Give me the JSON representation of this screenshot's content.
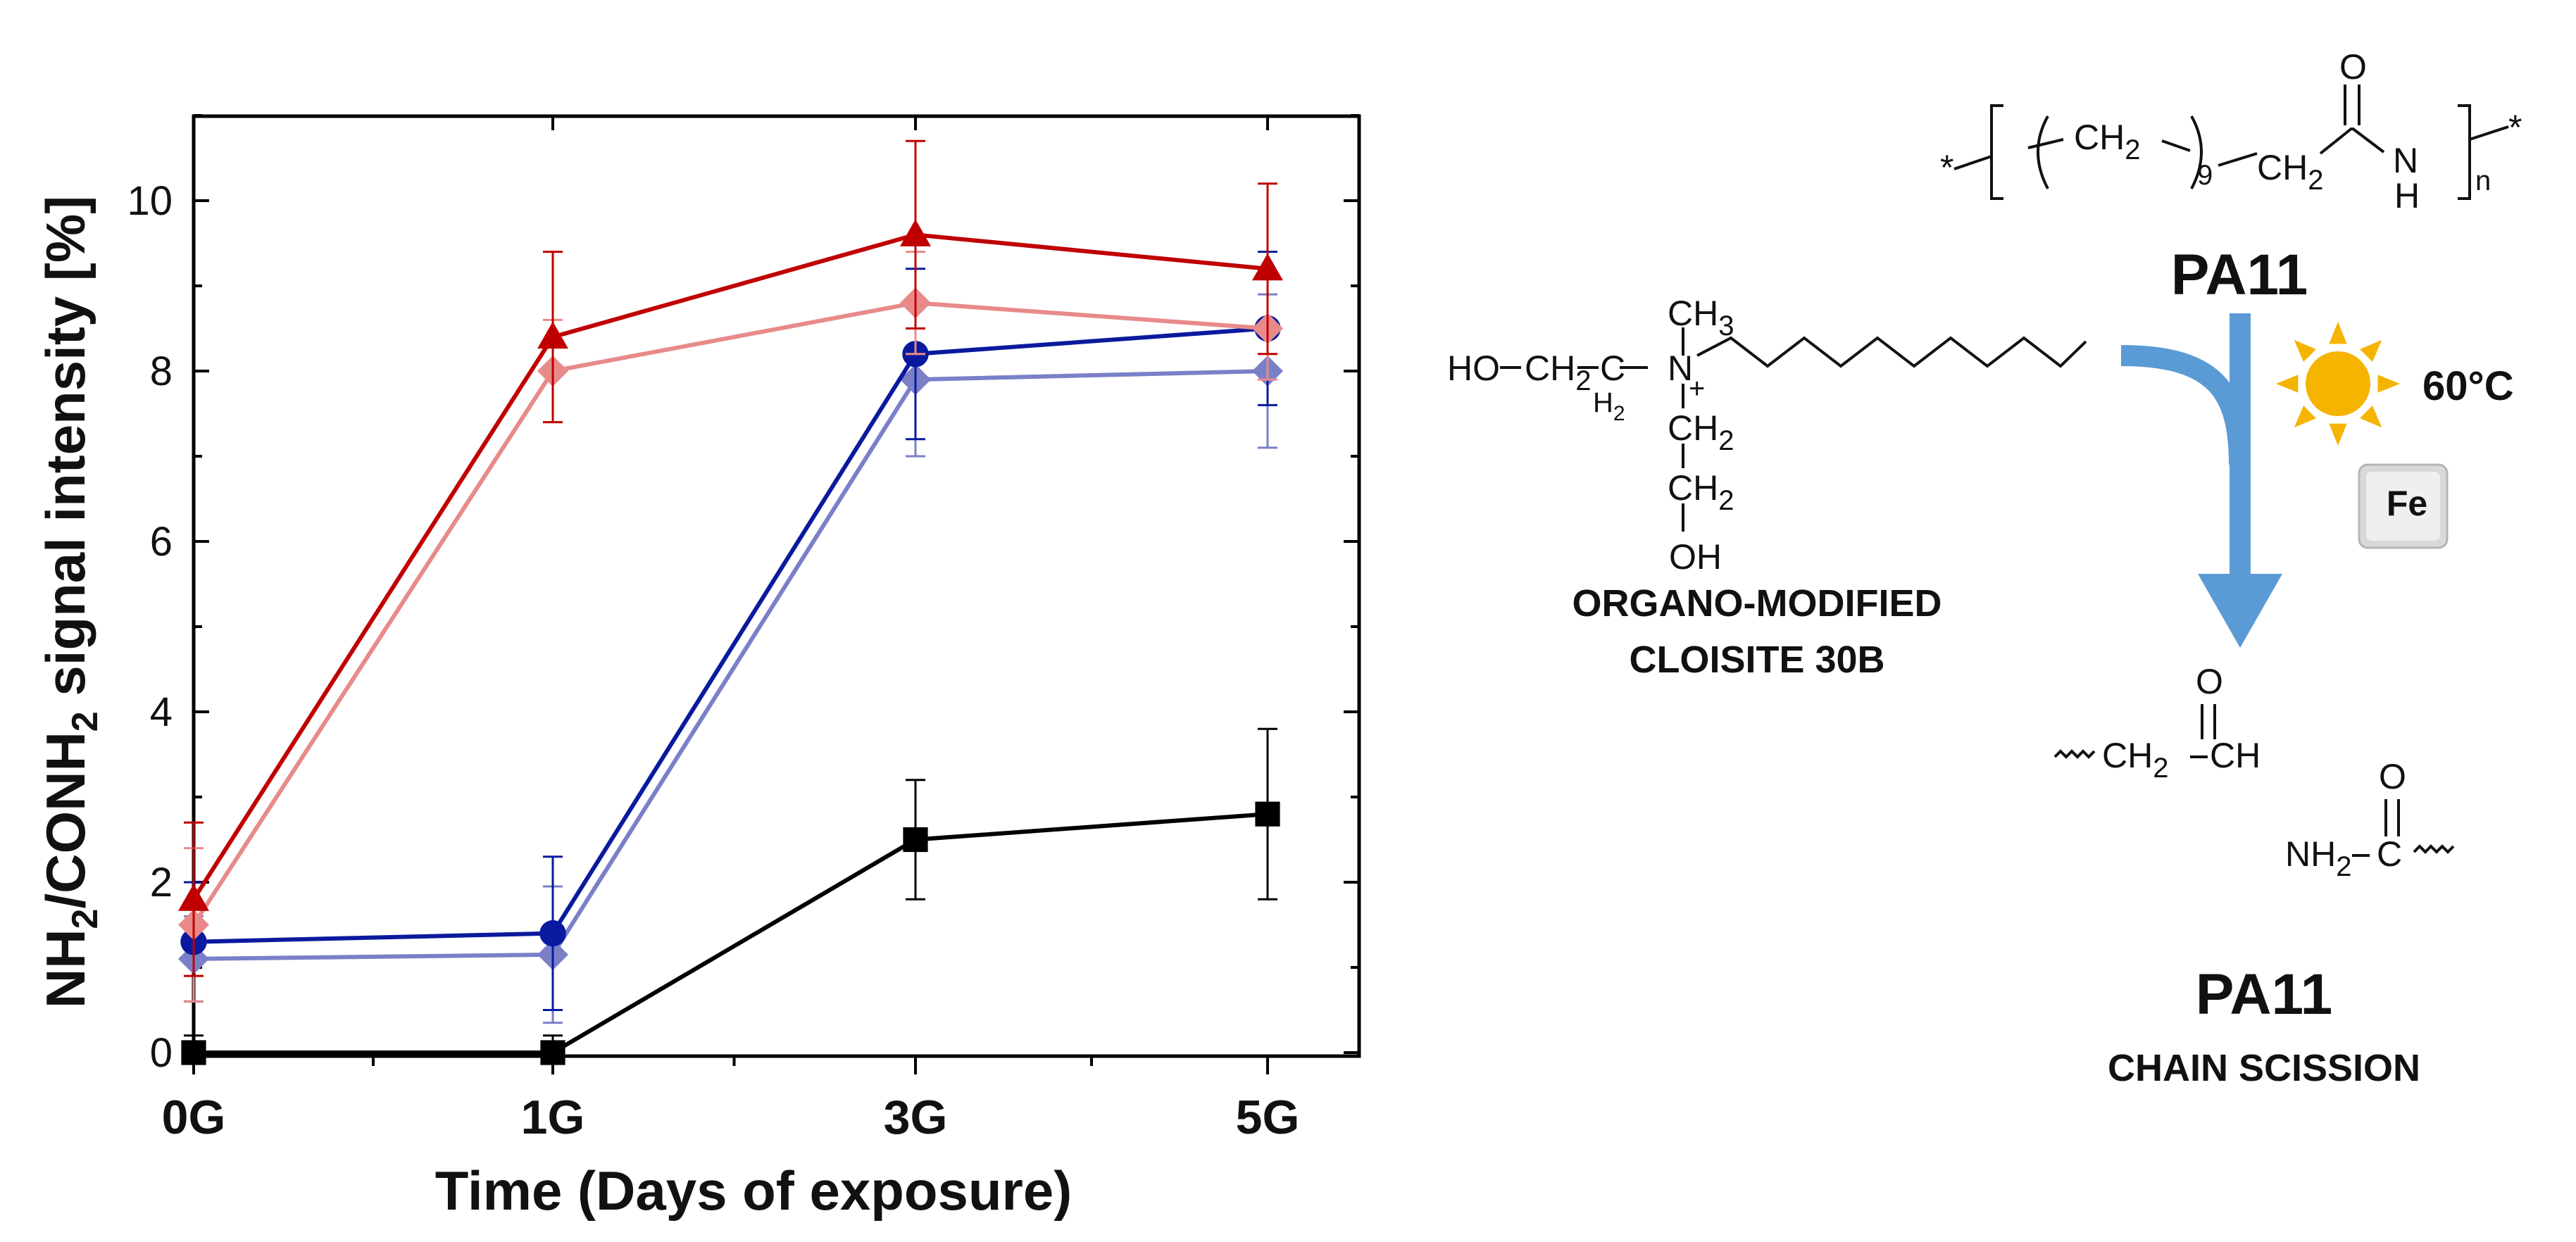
{
  "chart_data": {
    "type": "line",
    "xlabel": "Time (Days of exposure)",
    "ylabel_parts": [
      "NH",
      "2",
      "/CONH",
      "2",
      " signal intensity [%]"
    ],
    "categories": [
      "0G",
      "1G",
      "3G",
      "5G"
    ],
    "yticks": [
      "0",
      "2",
      "4",
      "6",
      "8",
      "10"
    ],
    "ylim": [
      0,
      11
    ],
    "series": [
      {
        "name": "series-dark-red",
        "color": "#c00000",
        "marker": "triangle",
        "values": [
          1.8,
          8.4,
          9.6,
          9.2
        ],
        "err": [
          0.9,
          1.0,
          1.1,
          1.0
        ]
      },
      {
        "name": "series-light-red",
        "color": "#e88a8a",
        "marker": "diamond",
        "values": [
          1.5,
          8.0,
          8.8,
          8.5
        ],
        "err": [
          0.9,
          0.6,
          0.6,
          0.6
        ]
      },
      {
        "name": "series-dark-blue",
        "color": "#0a1a9e",
        "marker": "circle",
        "values": [
          1.3,
          1.4,
          8.2,
          8.5
        ],
        "err": [
          0.7,
          0.9,
          1.0,
          0.9
        ]
      },
      {
        "name": "series-light-blue",
        "color": "#7a80c8",
        "marker": "diamond",
        "values": [
          1.1,
          1.15,
          7.9,
          8.0
        ],
        "err": [
          0.5,
          0.8,
          0.9,
          0.9
        ]
      },
      {
        "name": "series-black",
        "color": "#000000",
        "marker": "square",
        "values": [
          0,
          0,
          2.5,
          2.8
        ],
        "err": [
          0.2,
          0.2,
          0.7,
          1.0
        ]
      }
    ]
  },
  "scheme": {
    "pa11_title": "PA11",
    "temperature": "60°C",
    "fe_symbol": "Fe",
    "clay_caption_line1": "ORGANO-MODIFIED",
    "clay_caption_line2": "CLOISITE 30B",
    "product_title": "PA11",
    "product_caption": "CHAIN SCISSION",
    "ch2": "CH",
    "sub2": "2",
    "sub9": "9",
    "subn": "n",
    "o": "O",
    "n": "N",
    "h": "H",
    "star": "*",
    "ho": "HO",
    "c": "C",
    "ch3": "CH",
    "sub3": "3",
    "plus": "+",
    "oh": "OH",
    "ch": "CH",
    "nh": "NH",
    "colors": {
      "sun": "#f5b400",
      "arrow": "#5b9bd5",
      "temp": "#c00000",
      "fe": "#d01010"
    }
  }
}
